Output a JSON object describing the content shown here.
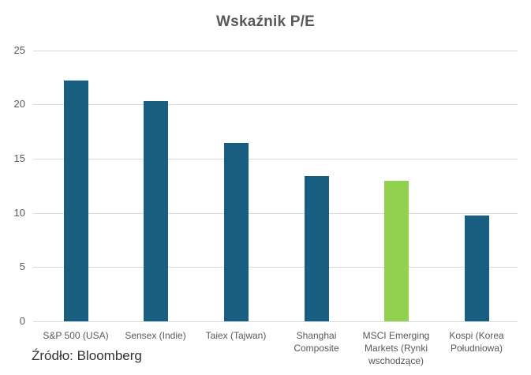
{
  "chart_data": {
    "type": "bar",
    "title": "Wskaźnik P/E",
    "xlabel": "",
    "ylabel": "",
    "ylim": [
      0,
      25
    ],
    "yticks": [
      0,
      5,
      10,
      15,
      20,
      25
    ],
    "grid": true,
    "legend": null,
    "categories": [
      "S&P 500 (USA)",
      "Sensex (Indie)",
      "Taiex (Tajwan)",
      "Shanghai Composite",
      "MSCI Emerging Markets (Rynki wschodzące)",
      "Kospi (Korea Południowa)"
    ],
    "values": [
      22.2,
      20.3,
      16.5,
      13.4,
      13.0,
      9.8
    ],
    "bar_colors": [
      "#175e80",
      "#175e80",
      "#175e80",
      "#175e80",
      "#92d050",
      "#175e80"
    ]
  },
  "labels": {
    "title": "Wskaźnik P/E",
    "source": "Źródło: Bloomberg",
    "yticks": [
      "25",
      "20",
      "15",
      "10",
      "5",
      "0"
    ],
    "x": [
      [
        "S&P 500 (USA)"
      ],
      [
        "Sensex (Indie)"
      ],
      [
        "Taiex (Tajwan)"
      ],
      [
        "Shanghai",
        "Composite"
      ],
      [
        "MSCI Emerging",
        "Markets (Rynki",
        "wschodzące)"
      ],
      [
        "Kospi (Korea",
        "Południowa)"
      ]
    ]
  },
  "colors": {
    "primary_bar": "#175e80",
    "highlight_bar": "#92d050",
    "grid": "#d9d9d9",
    "text": "#595959"
  }
}
